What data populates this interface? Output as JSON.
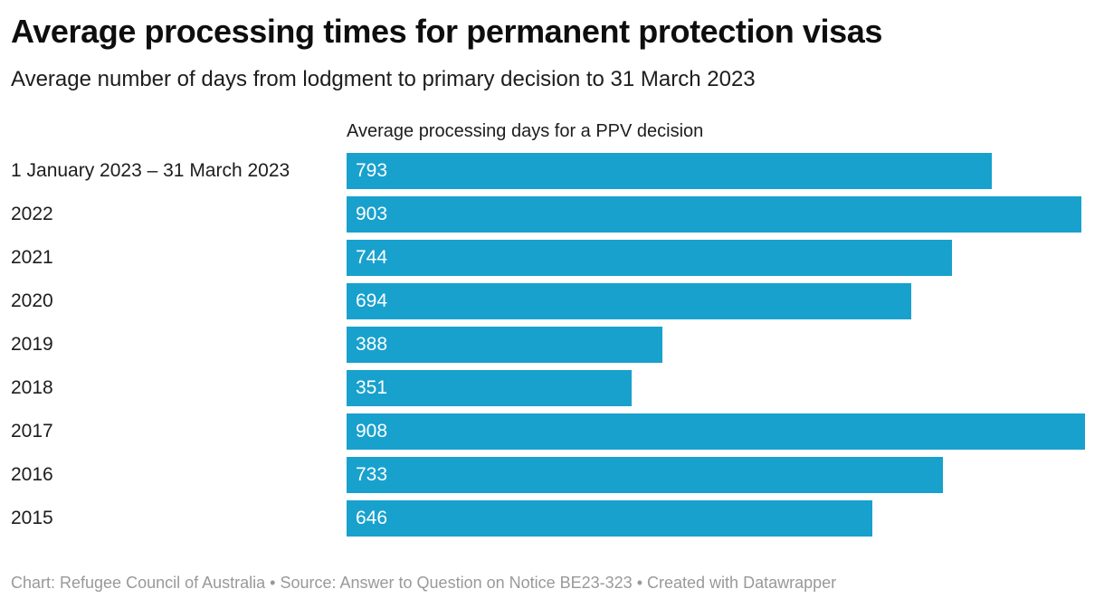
{
  "header": {
    "title": "Average processing times for permanent protection visas",
    "subtitle": "Average number of days from lodgment to primary decision to 31 March 2023"
  },
  "chart_data": {
    "type": "bar",
    "orientation": "horizontal",
    "title": "Average processing times for permanent protection visas",
    "subtitle": "Average number of days from lodgment to primary decision to 31 March 2023",
    "column_header": "Average processing days for a PPV decision",
    "categories": [
      "1 January 2023 – 31 March 2023",
      "2022",
      "2021",
      "2020",
      "2019",
      "2018",
      "2017",
      "2016",
      "2015"
    ],
    "values": [
      793,
      903,
      744,
      694,
      388,
      351,
      908,
      733,
      646
    ],
    "xlim": [
      0,
      908
    ],
    "grid": false,
    "legend": false,
    "value_labels_inside_bars": true,
    "bar_color": "#18a1cd",
    "value_label_color": "#ffffff",
    "label_color": "#1d1d1d"
  },
  "footer": {
    "chart_credit": "Chart: Refugee Council of Australia",
    "source": "Source: Answer to Question on Notice BE23-323",
    "created_with": "Created with Datawrapper",
    "separator": "•"
  }
}
